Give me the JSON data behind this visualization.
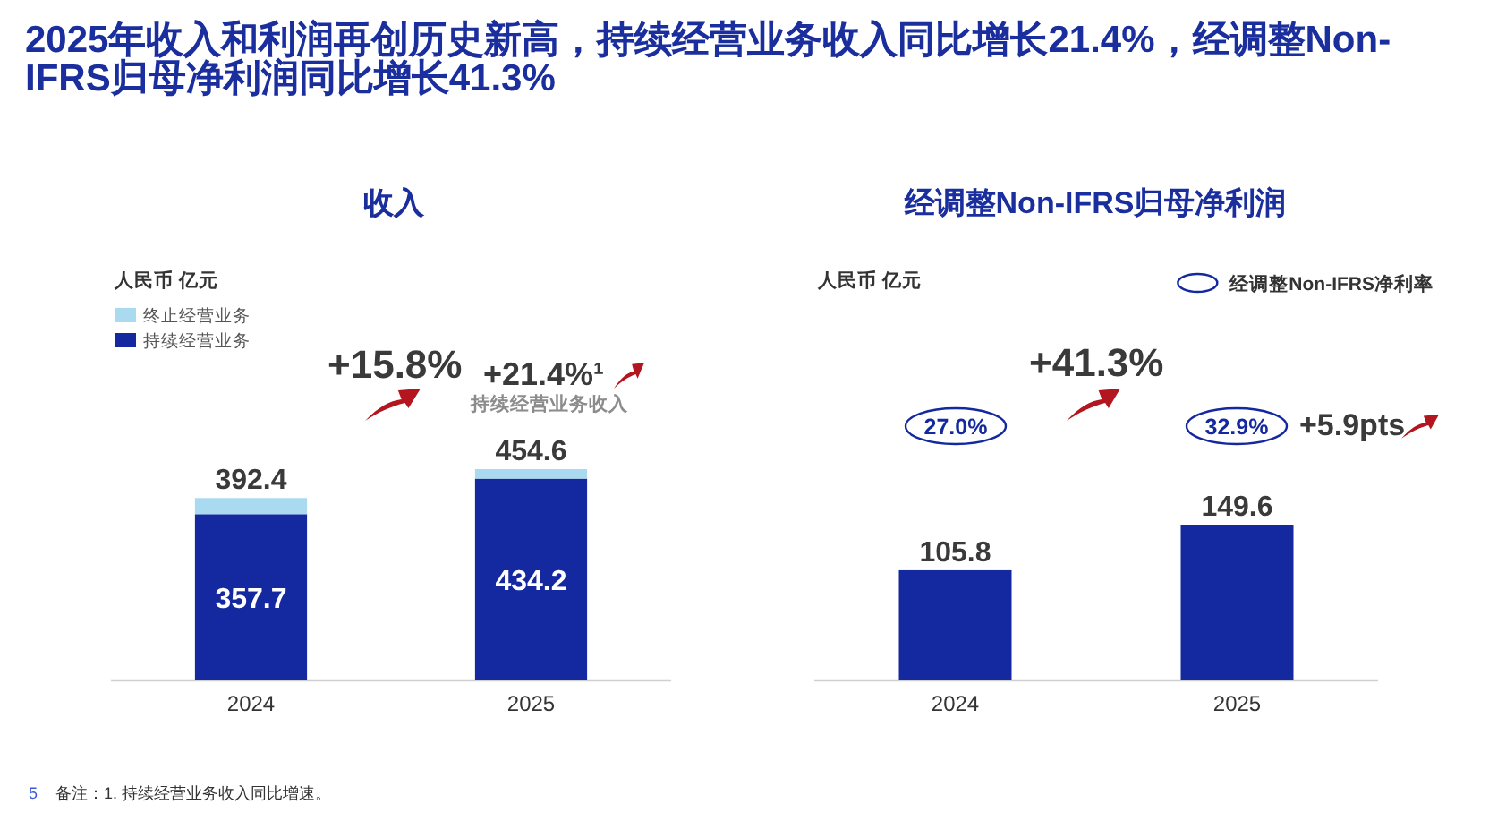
{
  "chart_data": [
    {
      "type": "other",
      "title": "2025年收入和利润再创历史新高，持续经营业务收入同比增长21.4%，经调整Non-IFRS归母净利润同比增长41.3%"
    },
    {
      "type": "bar",
      "title": "收入",
      "subtitle": "人民币 亿元",
      "categories": [
        "2024",
        "2025"
      ],
      "stacked": true,
      "series": [
        {
          "name": "持续经营业务",
          "color": "#1428a0",
          "values": [
            357.7,
            434.2
          ],
          "value_labels": [
            "357.7",
            "434.2"
          ]
        },
        {
          "name": "终止经营业务",
          "color": "#a9daf0",
          "values": [
            34.7,
            20.4
          ]
        }
      ],
      "totals": [
        "392.4",
        "454.6"
      ],
      "legend": "top left",
      "tick_labels": "x",
      "annotations": [
        "+15.8%",
        "+21.4%¹",
        "持续经营业务收入"
      ]
    },
    {
      "type": "bar",
      "title": "经调整Non-IFRS归母净利润",
      "subtitle": "人民币 亿元",
      "categories": [
        "2024",
        "2025"
      ],
      "series": [
        {
          "color": "#1428a0",
          "values": [
            105.8,
            149.6
          ],
          "value_labels": [
            "105.8",
            "149.6"
          ]
        }
      ],
      "tick_labels": "x",
      "annotations": [
        "经调整Non-IFRS净利率",
        "+41.3%",
        "27.0%",
        "32.9%",
        "+5.9pts"
      ]
    },
    {
      "type": "other",
      "annotations": [
        "5",
        "备注：1. 持续经营业务收入同比增速。"
      ]
    }
  ]
}
